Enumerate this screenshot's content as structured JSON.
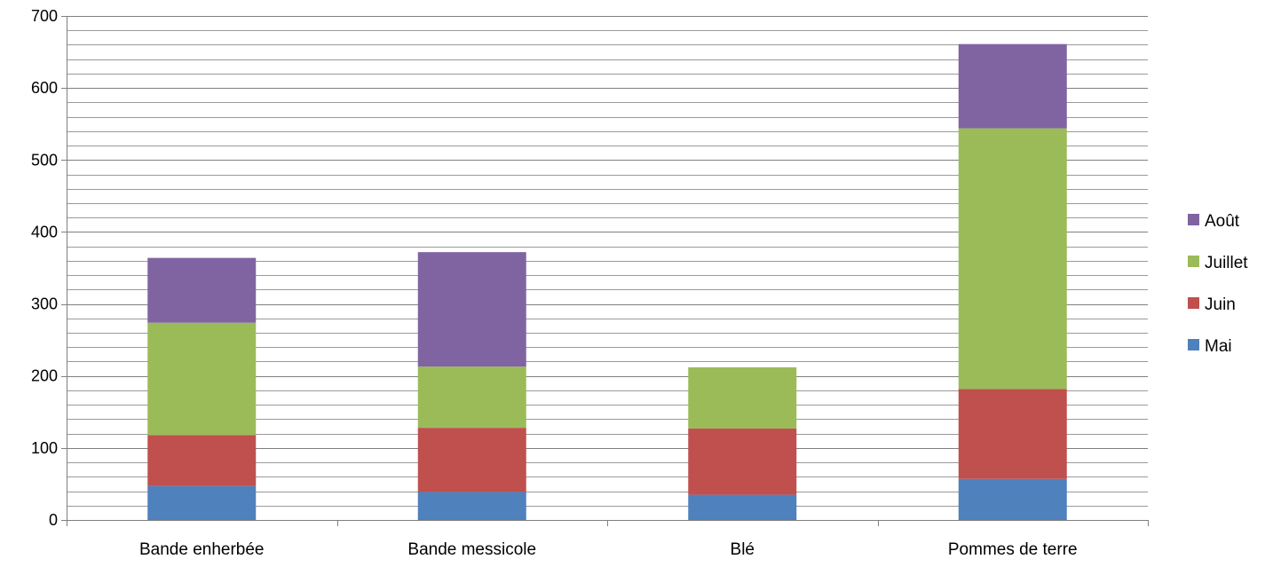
{
  "chart_data": {
    "type": "bar",
    "stacked": true,
    "title": "",
    "xlabel": "",
    "ylabel": "",
    "categories": [
      "Bande enherbée",
      "Bande messicole",
      "Blé",
      "Pommes de terre"
    ],
    "series": [
      {
        "name": "Mai",
        "color": "#4F81BD",
        "values": [
          47,
          39,
          35,
          57
        ]
      },
      {
        "name": "Juin",
        "color": "#C0504D",
        "values": [
          71,
          89,
          92,
          125
        ]
      },
      {
        "name": "Juillet",
        "color": "#9BBB59",
        "values": [
          156,
          85,
          85,
          362
        ]
      },
      {
        "name": "Août",
        "color": "#8064A2",
        "values": [
          90,
          159,
          0,
          117
        ]
      }
    ],
    "ylim": [
      0,
      700
    ],
    "yticks": [
      0,
      100,
      200,
      300,
      400,
      500,
      600,
      700
    ],
    "major_grid_step": 100,
    "minor_grid_step": 20,
    "grid": true,
    "legend_position": "right",
    "legend_order": [
      "Août",
      "Juillet",
      "Juin",
      "Mai"
    ]
  }
}
